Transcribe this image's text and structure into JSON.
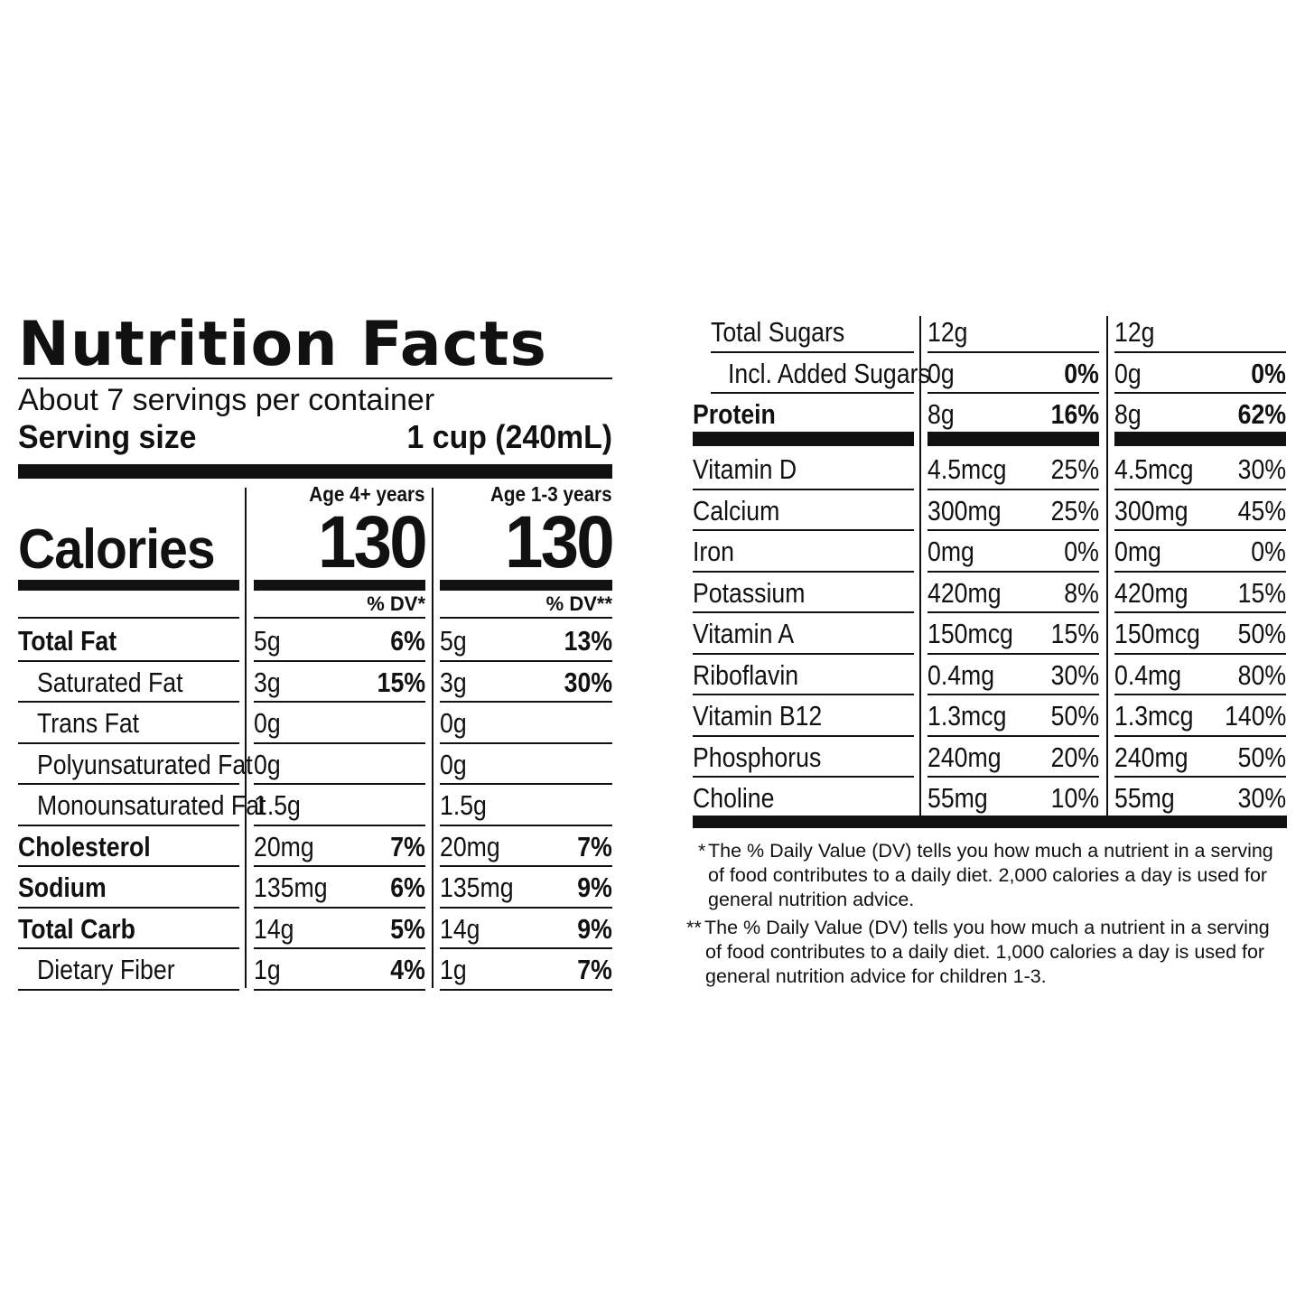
{
  "label": {
    "title": "Nutrition Facts",
    "servings_per_container": "About 7 servings per container",
    "serving_size_label": "Serving size",
    "serving_size_value": "1 cup (240mL)",
    "calories_label": "Calories",
    "columns": [
      {
        "header": "Age 4+ years",
        "calories": "130",
        "dv_label": "% DV*"
      },
      {
        "header": "Age 1-3 years",
        "calories": "130",
        "dv_label": "% DV**"
      }
    ],
    "left_rows": [
      {
        "label": "Total Fat",
        "bold": true,
        "indent": false,
        "c1": {
          "amt": "5g",
          "dv": "6%"
        },
        "c2": {
          "amt": "5g",
          "dv": "13%"
        }
      },
      {
        "label": "Saturated Fat",
        "bold": false,
        "indent": true,
        "c1": {
          "amt": "3g",
          "dv": "15%"
        },
        "c2": {
          "amt": "3g",
          "dv": "30%"
        }
      },
      {
        "label": "Trans Fat",
        "bold": false,
        "indent": true,
        "c1": {
          "amt": "0g",
          "dv": ""
        },
        "c2": {
          "amt": "0g",
          "dv": ""
        }
      },
      {
        "label": "Polyunsaturated Fat",
        "bold": false,
        "indent": true,
        "c1": {
          "amt": "0g",
          "dv": ""
        },
        "c2": {
          "amt": "0g",
          "dv": ""
        }
      },
      {
        "label": "Monounsaturated Fat",
        "bold": false,
        "indent": true,
        "c1": {
          "amt": "1.5g",
          "dv": ""
        },
        "c2": {
          "amt": "1.5g",
          "dv": ""
        }
      },
      {
        "label": "Cholesterol",
        "bold": true,
        "indent": false,
        "c1": {
          "amt": "20mg",
          "dv": "7%"
        },
        "c2": {
          "amt": "20mg",
          "dv": "7%"
        }
      },
      {
        "label": "Sodium",
        "bold": true,
        "indent": false,
        "c1": {
          "amt": "135mg",
          "dv": "6%"
        },
        "c2": {
          "amt": "135mg",
          "dv": "9%"
        }
      },
      {
        "label": "Total Carb",
        "bold": true,
        "indent": false,
        "c1": {
          "amt": "14g",
          "dv": "5%"
        },
        "c2": {
          "amt": "14g",
          "dv": "9%"
        }
      },
      {
        "label": "Dietary Fiber",
        "bold": false,
        "indent": true,
        "c1": {
          "amt": "1g",
          "dv": "4%"
        },
        "c2": {
          "amt": "1g",
          "dv": "7%"
        }
      }
    ],
    "right_rows_top": [
      {
        "label": "Total Sugars",
        "bold": false,
        "indent": 1,
        "c1": {
          "amt": "12g",
          "dv": ""
        },
        "c2": {
          "amt": "12g",
          "dv": ""
        }
      },
      {
        "label": "Incl. Added Sugars",
        "bold": false,
        "indent": 2,
        "c1": {
          "amt": "0g",
          "dv": "0%"
        },
        "c2": {
          "amt": "0g",
          "dv": "0%"
        }
      },
      {
        "label": "Protein",
        "bold": true,
        "indent": 0,
        "c1": {
          "amt": "8g",
          "dv": "16%"
        },
        "c2": {
          "amt": "8g",
          "dv": "62%"
        }
      }
    ],
    "right_rows_vitamins": [
      {
        "label": "Vitamin D",
        "c1": {
          "amt": "4.5mcg",
          "dv": "25%"
        },
        "c2": {
          "amt": "4.5mcg",
          "dv": "30%"
        }
      },
      {
        "label": "Calcium",
        "c1": {
          "amt": "300mg",
          "dv": "25%"
        },
        "c2": {
          "amt": "300mg",
          "dv": "45%"
        }
      },
      {
        "label": "Iron",
        "c1": {
          "amt": "0mg",
          "dv": "0%"
        },
        "c2": {
          "amt": "0mg",
          "dv": "0%"
        }
      },
      {
        "label": "Potassium",
        "c1": {
          "amt": "420mg",
          "dv": "8%"
        },
        "c2": {
          "amt": "420mg",
          "dv": "15%"
        }
      },
      {
        "label": "Vitamin A",
        "c1": {
          "amt": "150mcg",
          "dv": "15%"
        },
        "c2": {
          "amt": "150mcg",
          "dv": "50%"
        }
      },
      {
        "label": "Riboflavin",
        "c1": {
          "amt": "0.4mg",
          "dv": "30%"
        },
        "c2": {
          "amt": "0.4mg",
          "dv": "80%"
        }
      },
      {
        "label": "Vitamin B12",
        "c1": {
          "amt": "1.3mcg",
          "dv": "50%"
        },
        "c2": {
          "amt": "1.3mcg",
          "dv": "140%"
        }
      },
      {
        "label": "Phosphorus",
        "c1": {
          "amt": "240mg",
          "dv": "20%"
        },
        "c2": {
          "amt": "240mg",
          "dv": "50%"
        }
      },
      {
        "label": "Choline",
        "c1": {
          "amt": "55mg",
          "dv": "10%"
        },
        "c2": {
          "amt": "55mg",
          "dv": "30%"
        }
      }
    ],
    "footnotes": [
      {
        "marker": "*",
        "lines": [
          "The % Daily Value (DV) tells you how much a nutrient in a serving",
          "of food contributes to a daily diet. 2,000 calories a day is used for",
          "general nutrition advice."
        ]
      },
      {
        "marker": "**",
        "lines": [
          "The % Daily Value (DV) tells you how much a nutrient in a serving",
          "of food contributes to a daily diet. 1,000 calories a day is used for",
          "general nutrition advice for children 1-3."
        ]
      }
    ]
  }
}
